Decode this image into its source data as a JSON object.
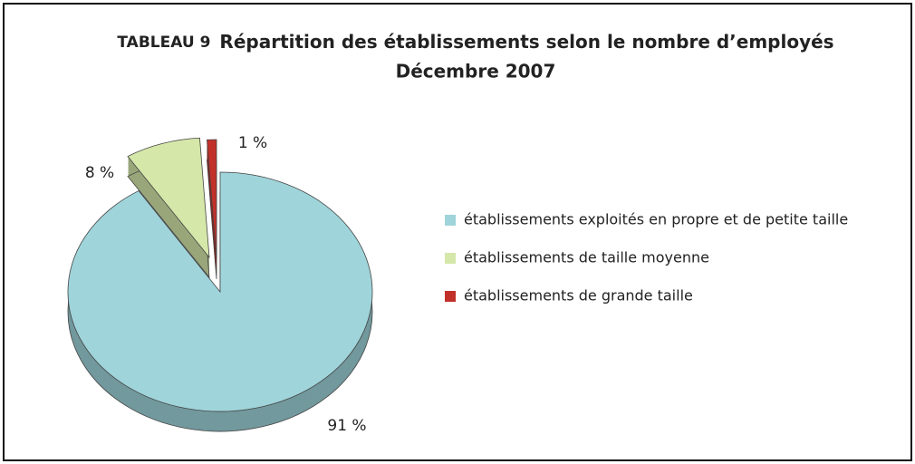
{
  "chart_data": {
    "type": "pie",
    "label": "TABLEAU 9",
    "title": "Répartition des établissements selon le nombre d’employés",
    "subtitle": "Décembre 2007",
    "categories": [
      "établissements exploités en propre et de petite taille",
      "établissements de taille moyenne",
      "établissements de grande taille"
    ],
    "values": [
      91,
      8,
      1
    ],
    "value_labels": [
      "91 %",
      "8 %",
      "1 %"
    ],
    "colors": [
      "#9fd4da",
      "#d5e7a9",
      "#c2302a"
    ],
    "legend": "right"
  }
}
